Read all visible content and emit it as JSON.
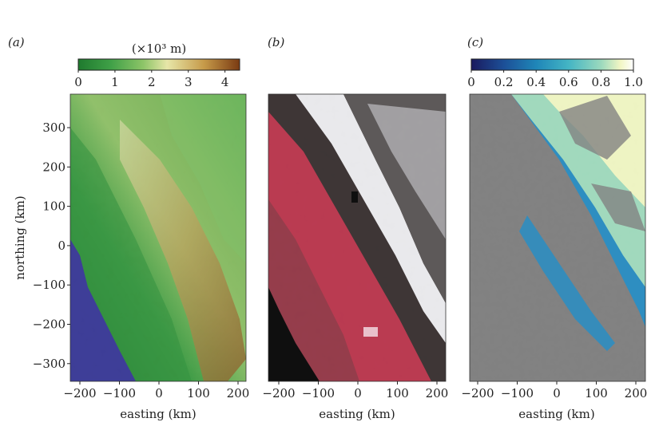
{
  "figure": {
    "panels": [
      {
        "label": "(a)",
        "description": "elevation shaded relief",
        "colorbar": {
          "title": "(×10³ m)",
          "ticks": [
            "0",
            "1",
            "2",
            "3",
            "4"
          ],
          "range": [
            0,
            4.4
          ],
          "colors": [
            "#1f7a2e",
            "#3fa047",
            "#8cc467",
            "#e7e6a8",
            "#c69a49",
            "#7a3a12"
          ]
        }
      },
      {
        "label": "(b)",
        "description": "false-color satellite composite"
      },
      {
        "label": "(c)",
        "description": "fractional snow cover",
        "colorbar": {
          "ticks": [
            "0",
            "0.2",
            "0.4",
            "0.6",
            "0.8",
            "1.0"
          ],
          "range": [
            0,
            1
          ],
          "colors": [
            "#1a1a5e",
            "#1c4f97",
            "#1f86b8",
            "#44b5c4",
            "#9bd9bd",
            "#f2f6c4",
            "#ffffff"
          ]
        }
      }
    ],
    "axes": {
      "xlabel": "easting (km)",
      "ylabel": "northing (km)",
      "x_ticks": [
        "−200",
        "−100",
        "0",
        "100",
        "200"
      ],
      "y_ticks": [
        "300",
        "200",
        "100",
        "0",
        "−100",
        "−200",
        "−300"
      ]
    },
    "colors": {
      "ocean": "#3a3a96",
      "masked": "#7f7f7f",
      "vegetation_red": "#b9374e"
    }
  }
}
